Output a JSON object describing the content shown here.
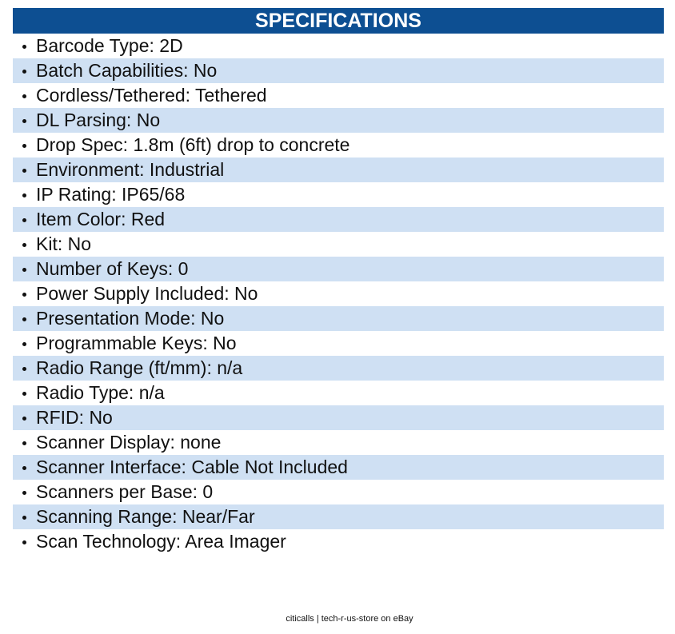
{
  "header": {
    "title": "SPECIFICATIONS"
  },
  "specs": [
    "Barcode Type: 2D",
    "Batch Capabilities: No",
    "Cordless/Tethered: Tethered",
    "DL Parsing: No",
    "Drop Spec: 1.8m (6ft) drop to concrete",
    "Environment: Industrial",
    "IP Rating: IP65/68",
    "Item Color: Red",
    "Kit: No",
    "Number of Keys: 0",
    "Power Supply Included: No",
    "Presentation Mode: No",
    "Programmable Keys: No",
    "Radio Range (ft/mm): n/a",
    "Radio Type: n/a",
    "RFID: No",
    "Scanner Display: none",
    "Scanner Interface: Cable Not Included",
    "Scanners per Base: 0",
    "Scanning Range: Near/Far",
    "Scan Technology: Area Imager"
  ],
  "footer": "citicalls | tech-r-us-store on eBay"
}
